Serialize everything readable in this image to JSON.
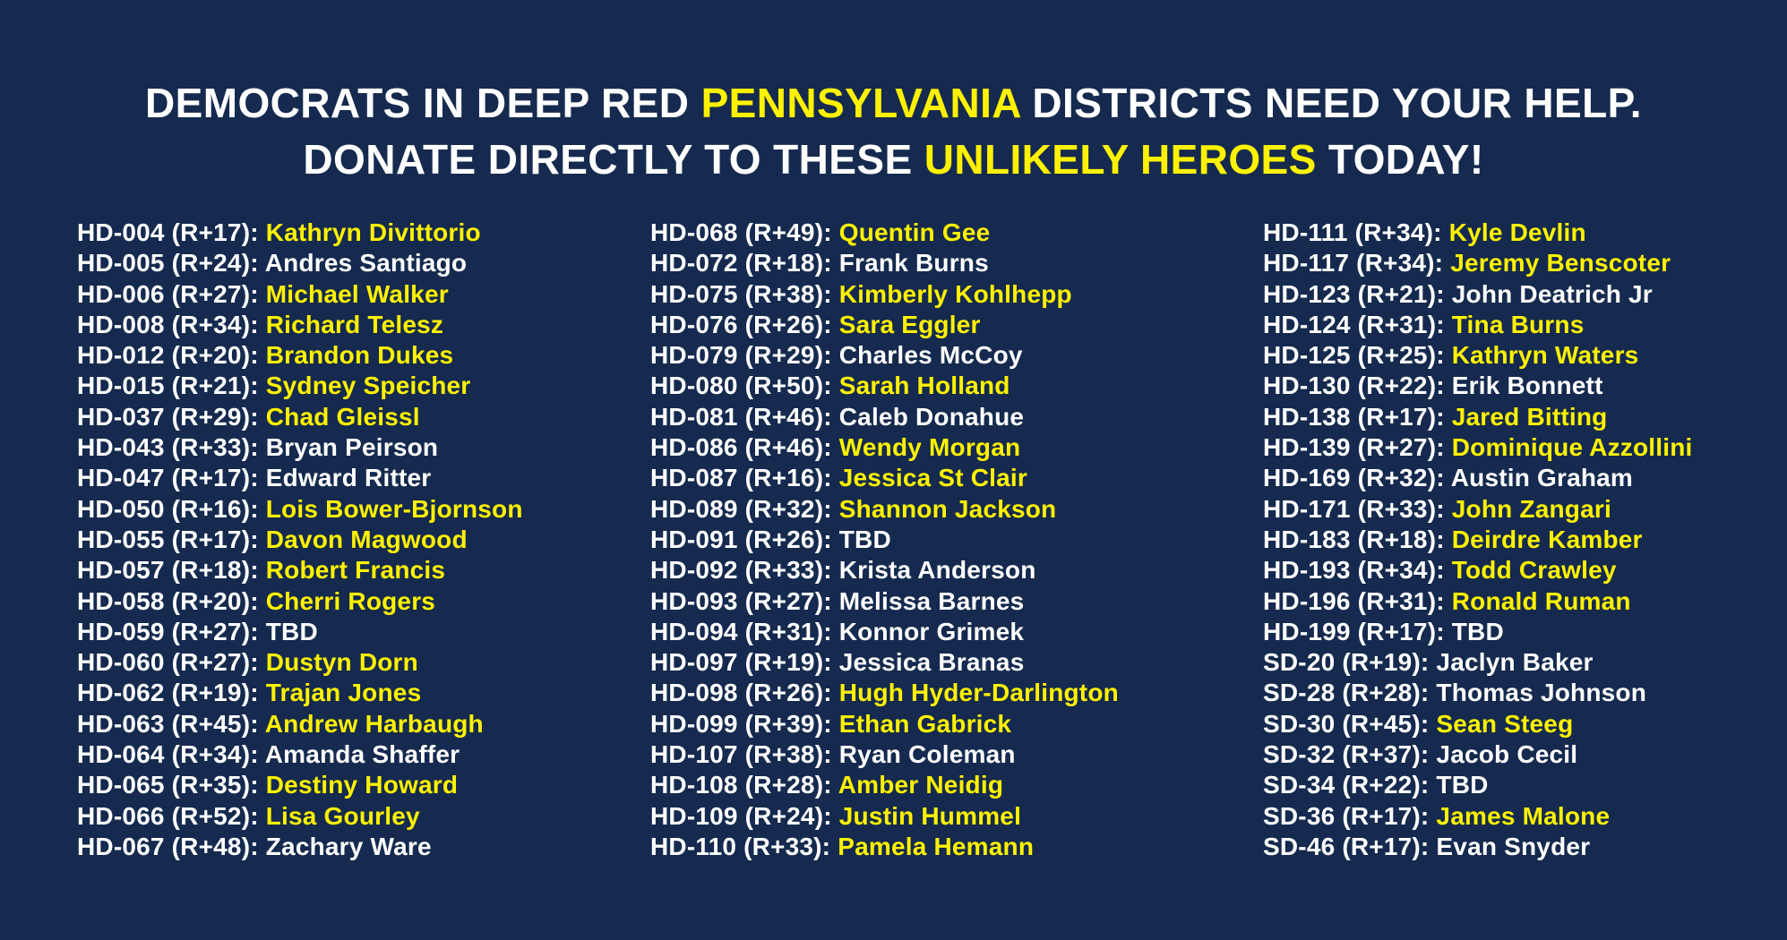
{
  "theme": {
    "background_navy": "#152a4e",
    "highlight_yellow": "#fff200",
    "text_white": "#ffffff"
  },
  "headline": {
    "line1_pre": "DEMOCRATS IN DEEP RED ",
    "line1_highlight": "PENNSYLVANIA",
    "line1_post": " DISTRICTS NEED YOUR HELP.",
    "line2_pre": "DONATE DIRECTLY TO THESE ",
    "line2_highlight": "UNLIKELY HEROES",
    "line2_post": " TODAY!"
  },
  "list": {
    "columns": [
      {
        "entries": [
          {
            "label": "HD-004 (R+17):",
            "name": "Kathryn Divittorio",
            "highlight": true
          },
          {
            "label": "HD-005 (R+24):",
            "name": "Andres Santiago",
            "highlight": false
          },
          {
            "label": "HD-006 (R+27):",
            "name": "Michael Walker",
            "highlight": true
          },
          {
            "label": "HD-008 (R+34):",
            "name": "Richard Telesz",
            "highlight": true
          },
          {
            "label": "HD-012 (R+20):",
            "name": "Brandon Dukes",
            "highlight": true
          },
          {
            "label": "HD-015 (R+21):",
            "name": "Sydney Speicher",
            "highlight": true
          },
          {
            "label": "HD-037 (R+29):",
            "name": "Chad Gleissl",
            "highlight": true
          },
          {
            "label": "HD-043 (R+33):",
            "name": "Bryan Peirson",
            "highlight": false
          },
          {
            "label": "HD-047 (R+17):",
            "name": "Edward Ritter",
            "highlight": false
          },
          {
            "label": "HD-050 (R+16):",
            "name": "Lois Bower-Bjornson",
            "highlight": true
          },
          {
            "label": "HD-055 (R+17):",
            "name": "Davon Magwood",
            "highlight": true
          },
          {
            "label": "HD-057 (R+18):",
            "name": "Robert Francis",
            "highlight": true
          },
          {
            "label": "HD-058 (R+20):",
            "name": "Cherri Rogers",
            "highlight": true
          },
          {
            "label": "HD-059 (R+27):",
            "name": "TBD",
            "highlight": false
          },
          {
            "label": "HD-060 (R+27):",
            "name": "Dustyn Dorn",
            "highlight": true
          },
          {
            "label": "HD-062 (R+19):",
            "name": "Trajan Jones",
            "highlight": true
          },
          {
            "label": "HD-063 (R+45):",
            "name": "Andrew Harbaugh",
            "highlight": true
          },
          {
            "label": "HD-064 (R+34):",
            "name": "Amanda Shaffer",
            "highlight": false
          },
          {
            "label": "HD-065 (R+35):",
            "name": "Destiny Howard",
            "highlight": true
          },
          {
            "label": "HD-066 (R+52):",
            "name": "Lisa Gourley",
            "highlight": true
          },
          {
            "label": "HD-067 (R+48):",
            "name": "Zachary Ware",
            "highlight": false
          }
        ]
      },
      {
        "entries": [
          {
            "label": "HD-068 (R+49):",
            "name": "Quentin Gee",
            "highlight": true
          },
          {
            "label": "HD-072 (R+18):",
            "name": "Frank Burns",
            "highlight": false
          },
          {
            "label": "HD-075 (R+38):",
            "name": "Kimberly Kohlhepp",
            "highlight": true
          },
          {
            "label": "HD-076 (R+26):",
            "name": "Sara Eggler",
            "highlight": true
          },
          {
            "label": "HD-079 (R+29):",
            "name": "Charles McCoy",
            "highlight": false
          },
          {
            "label": "HD-080 (R+50):",
            "name": "Sarah Holland",
            "highlight": true
          },
          {
            "label": "HD-081 (R+46):",
            "name": "Caleb Donahue",
            "highlight": false
          },
          {
            "label": "HD-086 (R+46):",
            "name": "Wendy Morgan",
            "highlight": true
          },
          {
            "label": "HD-087 (R+16):",
            "name": "Jessica St Clair",
            "highlight": true
          },
          {
            "label": "HD-089 (R+32):",
            "name": "Shannon Jackson",
            "highlight": true
          },
          {
            "label": "HD-091 (R+26):",
            "name": "TBD",
            "highlight": false
          },
          {
            "label": "HD-092 (R+33):",
            "name": "Krista Anderson",
            "highlight": false
          },
          {
            "label": "HD-093 (R+27):",
            "name": "Melissa Barnes",
            "highlight": false
          },
          {
            "label": "HD-094 (R+31):",
            "name": "Konnor Grimek",
            "highlight": false
          },
          {
            "label": "HD-097 (R+19):",
            "name": "Jessica Branas",
            "highlight": false
          },
          {
            "label": "HD-098 (R+26):",
            "name": "Hugh Hyder-Darlington",
            "highlight": true
          },
          {
            "label": "HD-099 (R+39):",
            "name": "Ethan Gabrick",
            "highlight": true
          },
          {
            "label": "HD-107 (R+38):",
            "name": "Ryan Coleman",
            "highlight": false
          },
          {
            "label": "HD-108 (R+28):",
            "name": "Amber Neidig",
            "highlight": true
          },
          {
            "label": "HD-109 (R+24):",
            "name": "Justin Hummel",
            "highlight": true
          },
          {
            "label": "HD-110 (R+33):",
            "name": "Pamela Hemann",
            "highlight": true
          }
        ]
      },
      {
        "entries": [
          {
            "label": "HD-111 (R+34):",
            "name": "Kyle Devlin",
            "highlight": true
          },
          {
            "label": "HD-117 (R+34):",
            "name": "Jeremy Benscoter",
            "highlight": true
          },
          {
            "label": "HD-123 (R+21):",
            "name": "John Deatrich Jr",
            "highlight": false
          },
          {
            "label": "HD-124 (R+31):",
            "name": "Tina Burns",
            "highlight": true
          },
          {
            "label": "HD-125 (R+25):",
            "name": "Kathryn Waters",
            "highlight": true
          },
          {
            "label": "HD-130 (R+22):",
            "name": "Erik Bonnett",
            "highlight": false
          },
          {
            "label": "HD-138 (R+17):",
            "name": "Jared Bitting",
            "highlight": true
          },
          {
            "label": "HD-139 (R+27):",
            "name": "Dominique Azzollini",
            "highlight": true
          },
          {
            "label": "HD-169 (R+32):",
            "name": "Austin Graham",
            "highlight": false
          },
          {
            "label": "HD-171 (R+33):",
            "name": "John Zangari",
            "highlight": true
          },
          {
            "label": "HD-183 (R+18):",
            "name": "Deirdre Kamber",
            "highlight": true
          },
          {
            "label": "HD-193 (R+34):",
            "name": "Todd Crawley",
            "highlight": true
          },
          {
            "label": "HD-196 (R+31):",
            "name": "Ronald Ruman",
            "highlight": true
          },
          {
            "label": "HD-199 (R+17):",
            "name": "TBD",
            "highlight": false
          },
          {
            "label": "SD-20 (R+19):",
            "name": "Jaclyn Baker",
            "highlight": false
          },
          {
            "label": "SD-28 (R+28):",
            "name": "Thomas Johnson",
            "highlight": false
          },
          {
            "label": "SD-30 (R+45):",
            "name": "Sean Steeg",
            "highlight": true
          },
          {
            "label": "SD-32 (R+37):",
            "name": "Jacob Cecil",
            "highlight": false
          },
          {
            "label": "SD-34 (R+22):",
            "name": "TBD",
            "highlight": false
          },
          {
            "label": "SD-36 (R+17):",
            "name": "James Malone",
            "highlight": true
          },
          {
            "label": "SD-46 (R+17):",
            "name": "Evan Snyder",
            "highlight": false
          }
        ]
      }
    ]
  }
}
